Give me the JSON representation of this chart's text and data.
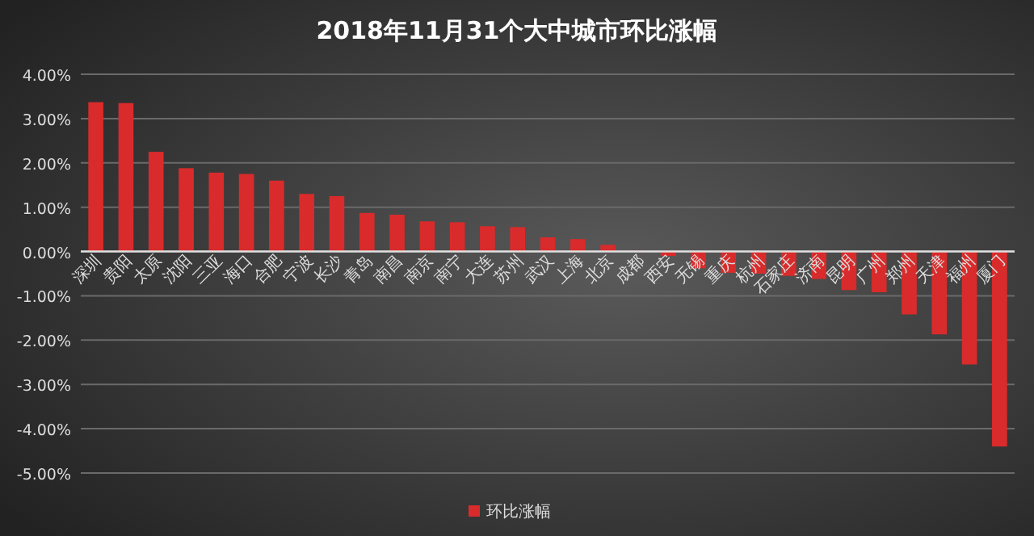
{
  "chart_data": {
    "type": "bar",
    "title": "2018年11月31个大中城市环比涨幅",
    "categories": [
      "深圳",
      "贵阳",
      "太原",
      "沈阳",
      "三亚",
      "海口",
      "合肥",
      "宁波",
      "长沙",
      "青岛",
      "南昌",
      "南京",
      "南宁",
      "大连",
      "苏州",
      "武汉",
      "上海",
      "北京",
      "成都",
      "西安",
      "无锡",
      "重庆",
      "杭州",
      "石家庄",
      "济南",
      "昆明",
      "广州",
      "郑州",
      "天津",
      "福州",
      "厦门"
    ],
    "series": [
      {
        "name": "环比涨幅",
        "color": "#d92b2b",
        "values": [
          3.37,
          3.35,
          2.25,
          1.88,
          1.78,
          1.75,
          1.6,
          1.3,
          1.25,
          0.87,
          0.83,
          0.68,
          0.66,
          0.57,
          0.55,
          0.32,
          0.28,
          0.15,
          0.02,
          -0.1,
          -0.38,
          -0.48,
          -0.5,
          -0.55,
          -0.62,
          -0.87,
          -0.92,
          -1.42,
          -1.87,
          -2.55,
          -4.4
        ]
      }
    ],
    "ylim": [
      -5,
      4
    ],
    "yticks": [
      {
        "value": 4,
        "label": "4.00%"
      },
      {
        "value": 3,
        "label": "3.00%"
      },
      {
        "value": 2,
        "label": "2.00%"
      },
      {
        "value": 1,
        "label": "1.00%"
      },
      {
        "value": 0,
        "label": "0.00%"
      },
      {
        "value": -1,
        "label": "-1.00%"
      },
      {
        "value": -2,
        "label": "-2.00%"
      },
      {
        "value": -3,
        "label": "-3.00%"
      },
      {
        "value": -4,
        "label": "-4.00%"
      },
      {
        "value": -5,
        "label": "-5.00%"
      }
    ],
    "grid": "y",
    "legend": "bottom"
  }
}
